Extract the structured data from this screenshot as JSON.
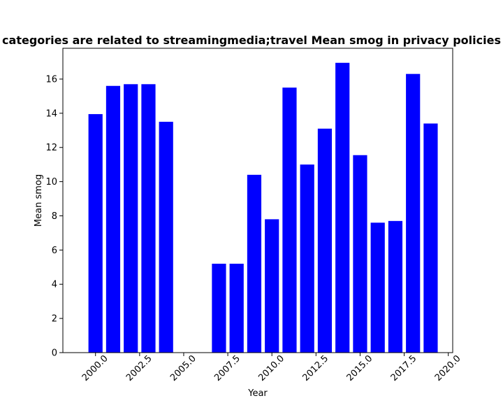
{
  "chart_data": {
    "type": "bar",
    "title": "categories are related to streamingmedia;travel Mean smog in privacy policies",
    "xlabel": "Year",
    "ylabel": "Mean smog",
    "x": [
      2000,
      2001,
      2002,
      2003,
      2004,
      2007,
      2008,
      2009,
      2010,
      2011,
      2012,
      2013,
      2014,
      2015,
      2016,
      2017,
      2018,
      2019
    ],
    "values": [
      13.95,
      15.6,
      15.7,
      15.7,
      13.5,
      5.2,
      5.2,
      10.4,
      7.8,
      15.5,
      11.0,
      13.1,
      16.95,
      11.55,
      7.6,
      7.7,
      16.3,
      13.4
    ],
    "xlim": [
      1998.15,
      2020.25
    ],
    "ylim": [
      0,
      17.8
    ],
    "xticks": [
      "2000.0",
      "2002.5",
      "2005.0",
      "2007.5",
      "2010.0",
      "2012.5",
      "2015.0",
      "2017.5",
      "2020.0"
    ],
    "yticks": [
      "0",
      "2",
      "4",
      "6",
      "8",
      "10",
      "12",
      "14",
      "16"
    ],
    "bar_color": "#0000ff",
    "grid": false,
    "legend": "none"
  }
}
